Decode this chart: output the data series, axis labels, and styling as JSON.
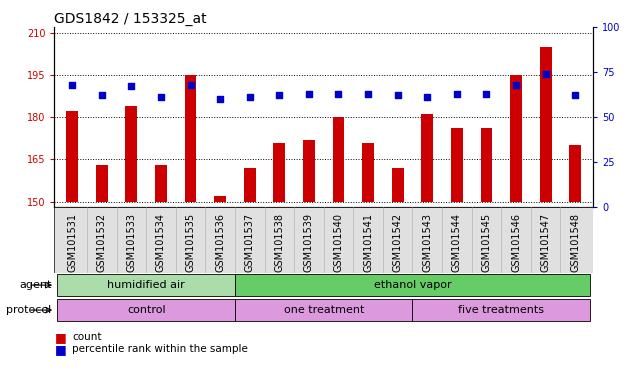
{
  "title": "GDS1842 / 153325_at",
  "samples": [
    "GSM101531",
    "GSM101532",
    "GSM101533",
    "GSM101534",
    "GSM101535",
    "GSM101536",
    "GSM101537",
    "GSM101538",
    "GSM101539",
    "GSM101540",
    "GSM101541",
    "GSM101542",
    "GSM101543",
    "GSM101544",
    "GSM101545",
    "GSM101546",
    "GSM101547",
    "GSM101548"
  ],
  "counts": [
    182,
    163,
    184,
    163,
    195,
    152,
    162,
    171,
    172,
    180,
    171,
    162,
    181,
    176,
    176,
    195,
    205,
    170
  ],
  "percentile_ranks": [
    68,
    62,
    67,
    61,
    68,
    60,
    61,
    62,
    63,
    63,
    63,
    62,
    61,
    63,
    63,
    68,
    74,
    62
  ],
  "ylim_left": [
    148,
    212
  ],
  "ylim_right": [
    0,
    100
  ],
  "yticks_left": [
    150,
    165,
    180,
    195,
    210
  ],
  "yticks_right": [
    0,
    25,
    50,
    75,
    100
  ],
  "bar_color": "#cc0000",
  "dot_color": "#0000cc",
  "bar_bottom": 150,
  "agent_groups": [
    {
      "label": "humidified air",
      "start": 0,
      "end": 6,
      "color": "#aaddaa"
    },
    {
      "label": "ethanol vapor",
      "start": 6,
      "end": 18,
      "color": "#66cc66"
    }
  ],
  "protocol_groups": [
    {
      "label": "control",
      "start": 0,
      "end": 6,
      "color": "#dd99dd"
    },
    {
      "label": "one treatment",
      "start": 6,
      "end": 12,
      "color": "#dd99dd"
    },
    {
      "label": "five treatments",
      "start": 12,
      "end": 18,
      "color": "#dd99dd"
    }
  ],
  "agent_label": "agent",
  "protocol_label": "protocol",
  "title_fontsize": 10,
  "tick_fontsize": 7,
  "annot_fontsize": 8,
  "bar_width": 0.4
}
